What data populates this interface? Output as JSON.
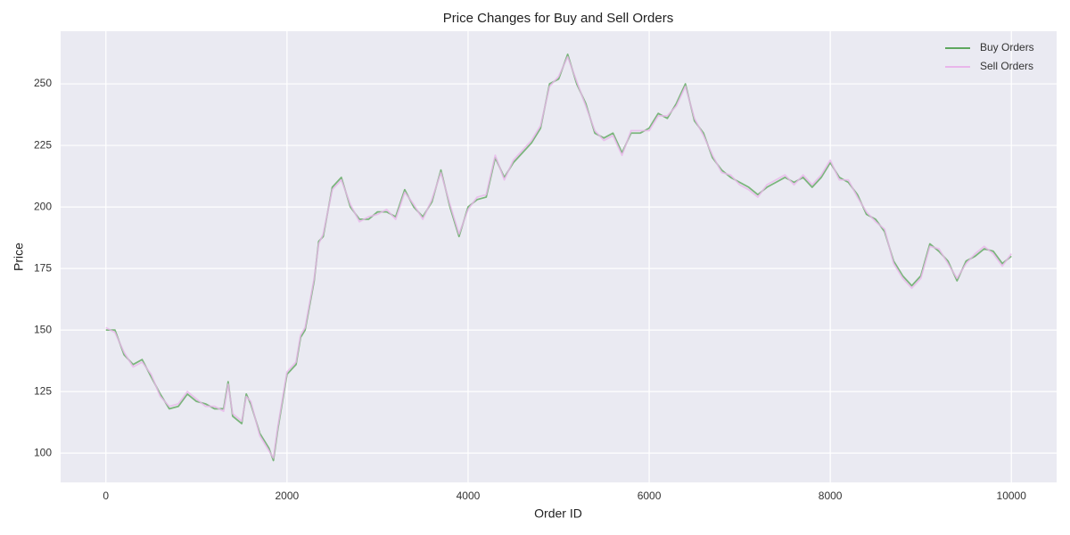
{
  "chart_data": {
    "type": "line",
    "title": "Price Changes for Buy and Sell Orders",
    "x_label": "Order ID",
    "y_label": "Price",
    "x": [
      0,
      100,
      200,
      300,
      400,
      500,
      600,
      700,
      800,
      900,
      1000,
      1100,
      1200,
      1300,
      1350,
      1400,
      1500,
      1550,
      1600,
      1700,
      1800,
      1850,
      1900,
      2000,
      2100,
      2150,
      2200,
      2300,
      2350,
      2400,
      2500,
      2600,
      2700,
      2800,
      2900,
      3000,
      3100,
      3200,
      3300,
      3400,
      3500,
      3600,
      3700,
      3800,
      3900,
      4000,
      4100,
      4200,
      4300,
      4400,
      4500,
      4600,
      4700,
      4800,
      4900,
      5000,
      5100,
      5200,
      5300,
      5400,
      5500,
      5600,
      5700,
      5800,
      5900,
      6000,
      6100,
      6200,
      6300,
      6400,
      6500,
      6600,
      6700,
      6800,
      6900,
      7000,
      7100,
      7200,
      7300,
      7400,
      7500,
      7600,
      7700,
      7800,
      7900,
      8000,
      8100,
      8200,
      8300,
      8400,
      8500,
      8600,
      8700,
      8800,
      8900,
      9000,
      9100,
      9200,
      9300,
      9400,
      9500,
      9600,
      9700,
      9800,
      9900,
      10000
    ],
    "series": [
      {
        "name": "Buy Orders",
        "color": "#5ea75e",
        "values": [
          150,
          150,
          140,
          136,
          138,
          131,
          124,
          118,
          119,
          124,
          121,
          120,
          118,
          118,
          129,
          115,
          112,
          124,
          120,
          108,
          102,
          97,
          110,
          132,
          136,
          147,
          150,
          170,
          186,
          188,
          208,
          212,
          200,
          195,
          195,
          198,
          198,
          196,
          207,
          200,
          196,
          202,
          215,
          200,
          188,
          200,
          203,
          204,
          220,
          212,
          218,
          222,
          226,
          232,
          250,
          252,
          262,
          250,
          242,
          230,
          228,
          230,
          222,
          230,
          230,
          232,
          238,
          236,
          242,
          250,
          235,
          230,
          220,
          215,
          212,
          210,
          208,
          205,
          208,
          210,
          212,
          210,
          212,
          208,
          212,
          218,
          212,
          210,
          205,
          197,
          195,
          190,
          178,
          172,
          168,
          172,
          185,
          182,
          178,
          170,
          178,
          180,
          183,
          182,
          177,
          180
        ]
      },
      {
        "name": "Sell Orders",
        "color": "#e9b6ea",
        "values": [
          151,
          149,
          141,
          135,
          137,
          132,
          123,
          119,
          120,
          125,
          122,
          119,
          119,
          117,
          128,
          116,
          113,
          123,
          121,
          107,
          101,
          98,
          111,
          133,
          137,
          148,
          151,
          171,
          185,
          189,
          207,
          211,
          201,
          194,
          196,
          197,
          199,
          195,
          206,
          201,
          195,
          203,
          214,
          201,
          189,
          199,
          204,
          205,
          221,
          211,
          219,
          223,
          227,
          233,
          249,
          253,
          261,
          251,
          241,
          231,
          227,
          229,
          221,
          231,
          231,
          231,
          237,
          237,
          241,
          249,
          236,
          229,
          221,
          214,
          213,
          209,
          207,
          204,
          209,
          211,
          213,
          209,
          213,
          209,
          213,
          219,
          211,
          211,
          204,
          198,
          194,
          191,
          177,
          171,
          167,
          171,
          184,
          183,
          177,
          171,
          177,
          181,
          184,
          181,
          176,
          181
        ]
      }
    ],
    "xlim": [
      -500,
      10500
    ],
    "ylim": [
      88.1,
      271.4
    ],
    "xticks": [
      0,
      2000,
      4000,
      6000,
      8000,
      10000
    ],
    "yticks": [
      100,
      125,
      150,
      175,
      200,
      225,
      250
    ],
    "grid": true,
    "legend": "upper right"
  }
}
